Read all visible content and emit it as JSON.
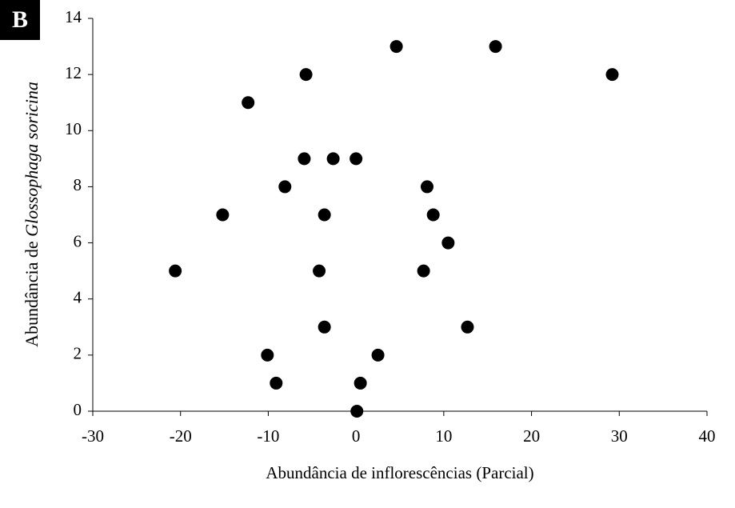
{
  "chart_data": {
    "type": "scatter",
    "panel_label": "B",
    "xlabel": "Abundância de inflorescências (Parcial)",
    "ylabel": [
      "Abundância de ",
      "Glossophaga soricina"
    ],
    "series": [
      {
        "color": "#000000",
        "x": [
          4.6,
          15.9,
          29.2,
          -5.7,
          -12.3,
          -5.9,
          -2.6,
          0,
          -8.1,
          8.1,
          -15.2,
          -3.6,
          8.8,
          10.5,
          -20.6,
          -4.2,
          7.7,
          -3.6,
          12.7,
          -10.1,
          2.5,
          -9.1,
          0.5,
          0.1
        ],
        "values": [
          13,
          13,
          12,
          12,
          11,
          9,
          9,
          9,
          8,
          8,
          7,
          7,
          7,
          6,
          5,
          5,
          5,
          3,
          3,
          2,
          2,
          1,
          1,
          0
        ]
      }
    ],
    "xlim": [
      -30,
      40
    ],
    "xticks": [
      -30,
      -20,
      -10,
      0,
      10,
      20,
      30,
      40
    ],
    "ylim": [
      0,
      14
    ],
    "yticks": [
      0,
      2,
      4,
      6,
      8,
      10,
      12,
      14
    ],
    "grid": false
  }
}
